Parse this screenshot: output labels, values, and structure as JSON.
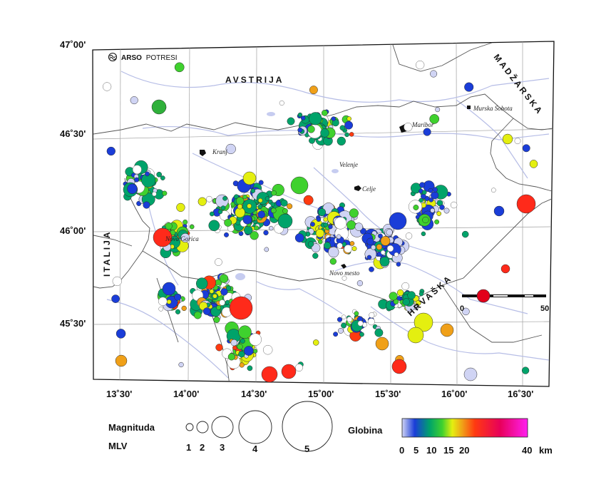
{
  "logo": {
    "name": "ARSO POTRESI",
    "bold": "ARSO",
    "light": "POTRESI"
  },
  "axes": {
    "lat_labels": [
      "47˚00'",
      "46˚30'",
      "46˚00'",
      "45˚30'"
    ],
    "lon_labels": [
      "13˚30'",
      "14˚00'",
      "14˚30'",
      "15˚00'",
      "15˚30'",
      "16˚00'",
      "16˚30'"
    ]
  },
  "countries": {
    "austria": "AVSTRIJA",
    "hungary": "MADŽARSKA",
    "italy": "ITALIJA",
    "croatia": "HRVAŠKA"
  },
  "cities": {
    "murska_sobota": "Murska Sobota",
    "maribor": "Maribor",
    "velenje": "Velenje",
    "kranj": "Kranj",
    "celje": "Celje",
    "nova_gorica": "Nova Gorica",
    "novo_mesto": "Novo mesto"
  },
  "scale_bar": {
    "start": "0",
    "end": "50"
  },
  "legend": {
    "magnitude_title": "Magnituda",
    "magnitude_unit": "MLV",
    "magnitudes": [
      "1",
      "2",
      "3",
      "4",
      "5"
    ],
    "depth_title": "Globina",
    "depth_ticks": [
      "0",
      "5",
      "10",
      "15",
      "20",
      "40"
    ],
    "depth_unit": "km"
  },
  "colors": {
    "depth_stops": [
      "#d0d4f4",
      "#1a3dd8",
      "#00a36a",
      "#3fd12e",
      "#e4ef10",
      "#f0a018",
      "#ff3a10",
      "#e8005a",
      "#ff20f0"
    ],
    "rivers": "#b6bde6",
    "borders": "#555555",
    "grid": "#a0a0a0"
  }
}
